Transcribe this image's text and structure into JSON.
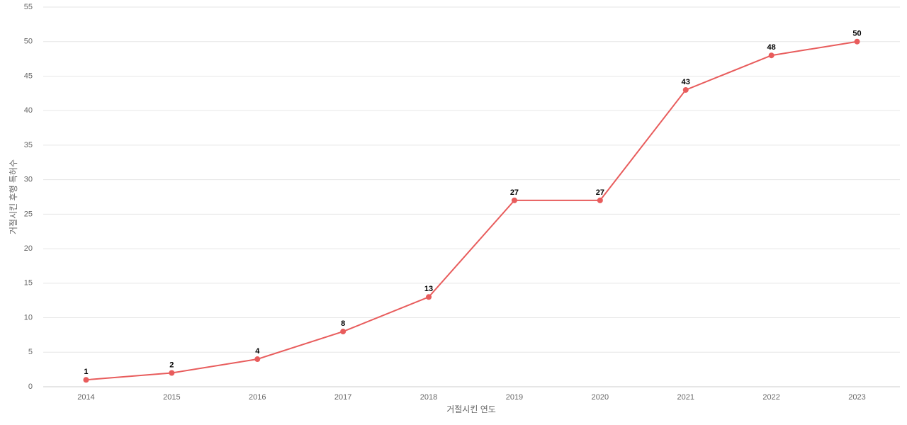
{
  "chart_data": {
    "type": "line",
    "x_label": "거절시킨 연도",
    "y_label": "거절시킨 후행 특허수",
    "categories": [
      "2014",
      "2015",
      "2016",
      "2017",
      "2018",
      "2019",
      "2020",
      "2021",
      "2022",
      "2023"
    ],
    "series": [
      {
        "color": "#e85c5c",
        "values": [
          1,
          2,
          4,
          8,
          13,
          27,
          27,
          43,
          48,
          50
        ]
      }
    ],
    "ylim": [
      0,
      55
    ],
    "yticks": [
      0,
      5,
      10,
      15,
      20,
      25,
      30,
      35,
      40,
      45,
      50,
      55
    ],
    "grid": true
  }
}
